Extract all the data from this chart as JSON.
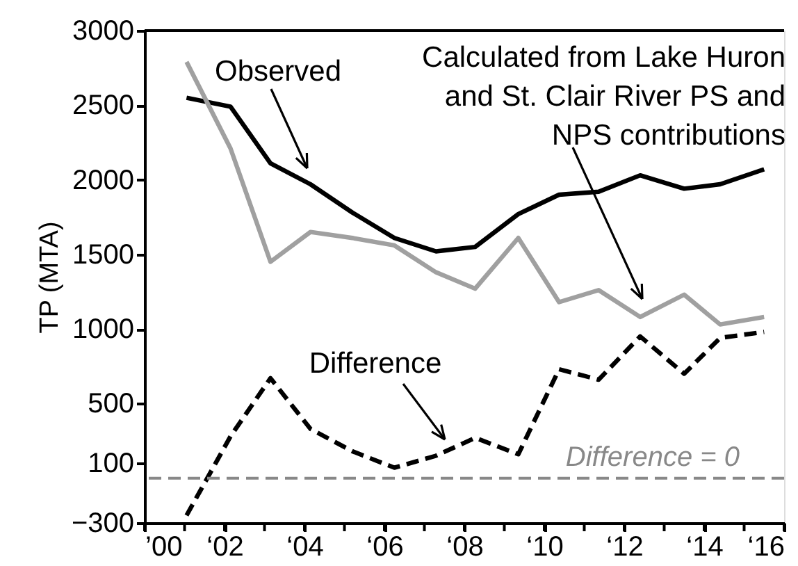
{
  "chart_data": {
    "type": "line",
    "ylabel": "TP (MTA)",
    "x": [
      1.05,
      2.15,
      3.15,
      4.15,
      5.2,
      6.25,
      7.29,
      8.27,
      9.35,
      10.37,
      11.36,
      12.4,
      13.5,
      14.4,
      15.5
    ],
    "series": [
      {
        "color": "#000000",
        "line_style": "solid",
        "values": [
          2550,
          2490,
          2110,
          1970,
          1780,
          1610,
          1520,
          1550,
          1770,
          1900,
          1920,
          2030,
          1940,
          1970,
          2070
        ]
      },
      {
        "color": "#a0a0a0",
        "line_style": "solid",
        "values": [
          2790,
          2210,
          1450,
          1650,
          1610,
          1560,
          1380,
          1270,
          1610,
          1180,
          1260,
          1080,
          1230,
          1030,
          1080
        ]
      },
      {
        "color": "#000000",
        "line_style": "dashed",
        "values": [
          -250,
          280,
          670,
          330,
          180,
          70,
          150,
          270,
          160,
          730,
          660,
          950,
          700,
          940,
          980
        ]
      }
    ],
    "xlim": [
      0,
      16
    ],
    "xticks": [
      {
        "value": 0,
        "label": "’00"
      },
      {
        "value": 1,
        "label": null
      },
      {
        "value": 2,
        "label": "‘02"
      },
      {
        "value": 3,
        "label": null
      },
      {
        "value": 4,
        "label": "‘04"
      },
      {
        "value": 5,
        "label": null
      },
      {
        "value": 6,
        "label": "‘06"
      },
      {
        "value": 7,
        "label": null
      },
      {
        "value": 8,
        "label": "‘08"
      },
      {
        "value": 9,
        "label": null
      },
      {
        "value": 10,
        "label": "‘10"
      },
      {
        "value": 11,
        "label": null
      },
      {
        "value": 12,
        "label": "‘12"
      },
      {
        "value": 13,
        "label": null
      },
      {
        "value": 14,
        "label": "‘14"
      },
      {
        "value": 15,
        "label": null
      },
      {
        "value": 16,
        "label": "‘16"
      }
    ],
    "ylim": [
      -300,
      3000
    ],
    "yticks": [
      -300,
      100,
      500,
      1000,
      1500,
      2000,
      2500,
      3000
    ],
    "ref_lines": [
      {
        "axis": "y",
        "value": 0,
        "label": "Difference = 0",
        "color": "#888888",
        "line_style": "dashed"
      }
    ],
    "annotations": [
      "Observed",
      "Calculated from Lake Huron\nand St. Clair River PS and\nNPS contributions",
      "Difference"
    ],
    "grid": false,
    "marker": "none"
  }
}
